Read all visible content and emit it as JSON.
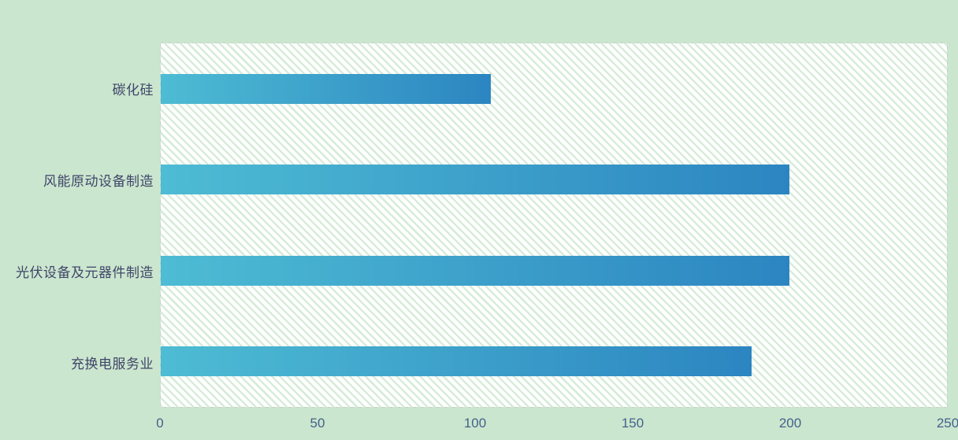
{
  "chart_data": {
    "type": "bar",
    "orientation": "horizontal",
    "title": "",
    "xlabel": "",
    "ylabel": "",
    "categories": [
      "碳化硅",
      "风能原动设备制造",
      "光伏设备及元器件制造",
      "充换电服务业"
    ],
    "values": [
      105,
      200,
      200,
      188
    ],
    "xlim": [
      0,
      250
    ],
    "x_ticks": [
      0,
      50,
      100,
      150,
      200,
      250
    ],
    "grid": "hatched-plot-background",
    "legend": "none",
    "colors": {
      "page_background": "#cbe6ce",
      "plot_background": "#ffffff",
      "hatch_green": "#d7ecd9",
      "bar_gradient_start": "#4ebcd4",
      "bar_gradient_end": "#2c85c1",
      "category_label_color": "#3f4569",
      "tick_label_color": "#44618c"
    }
  }
}
